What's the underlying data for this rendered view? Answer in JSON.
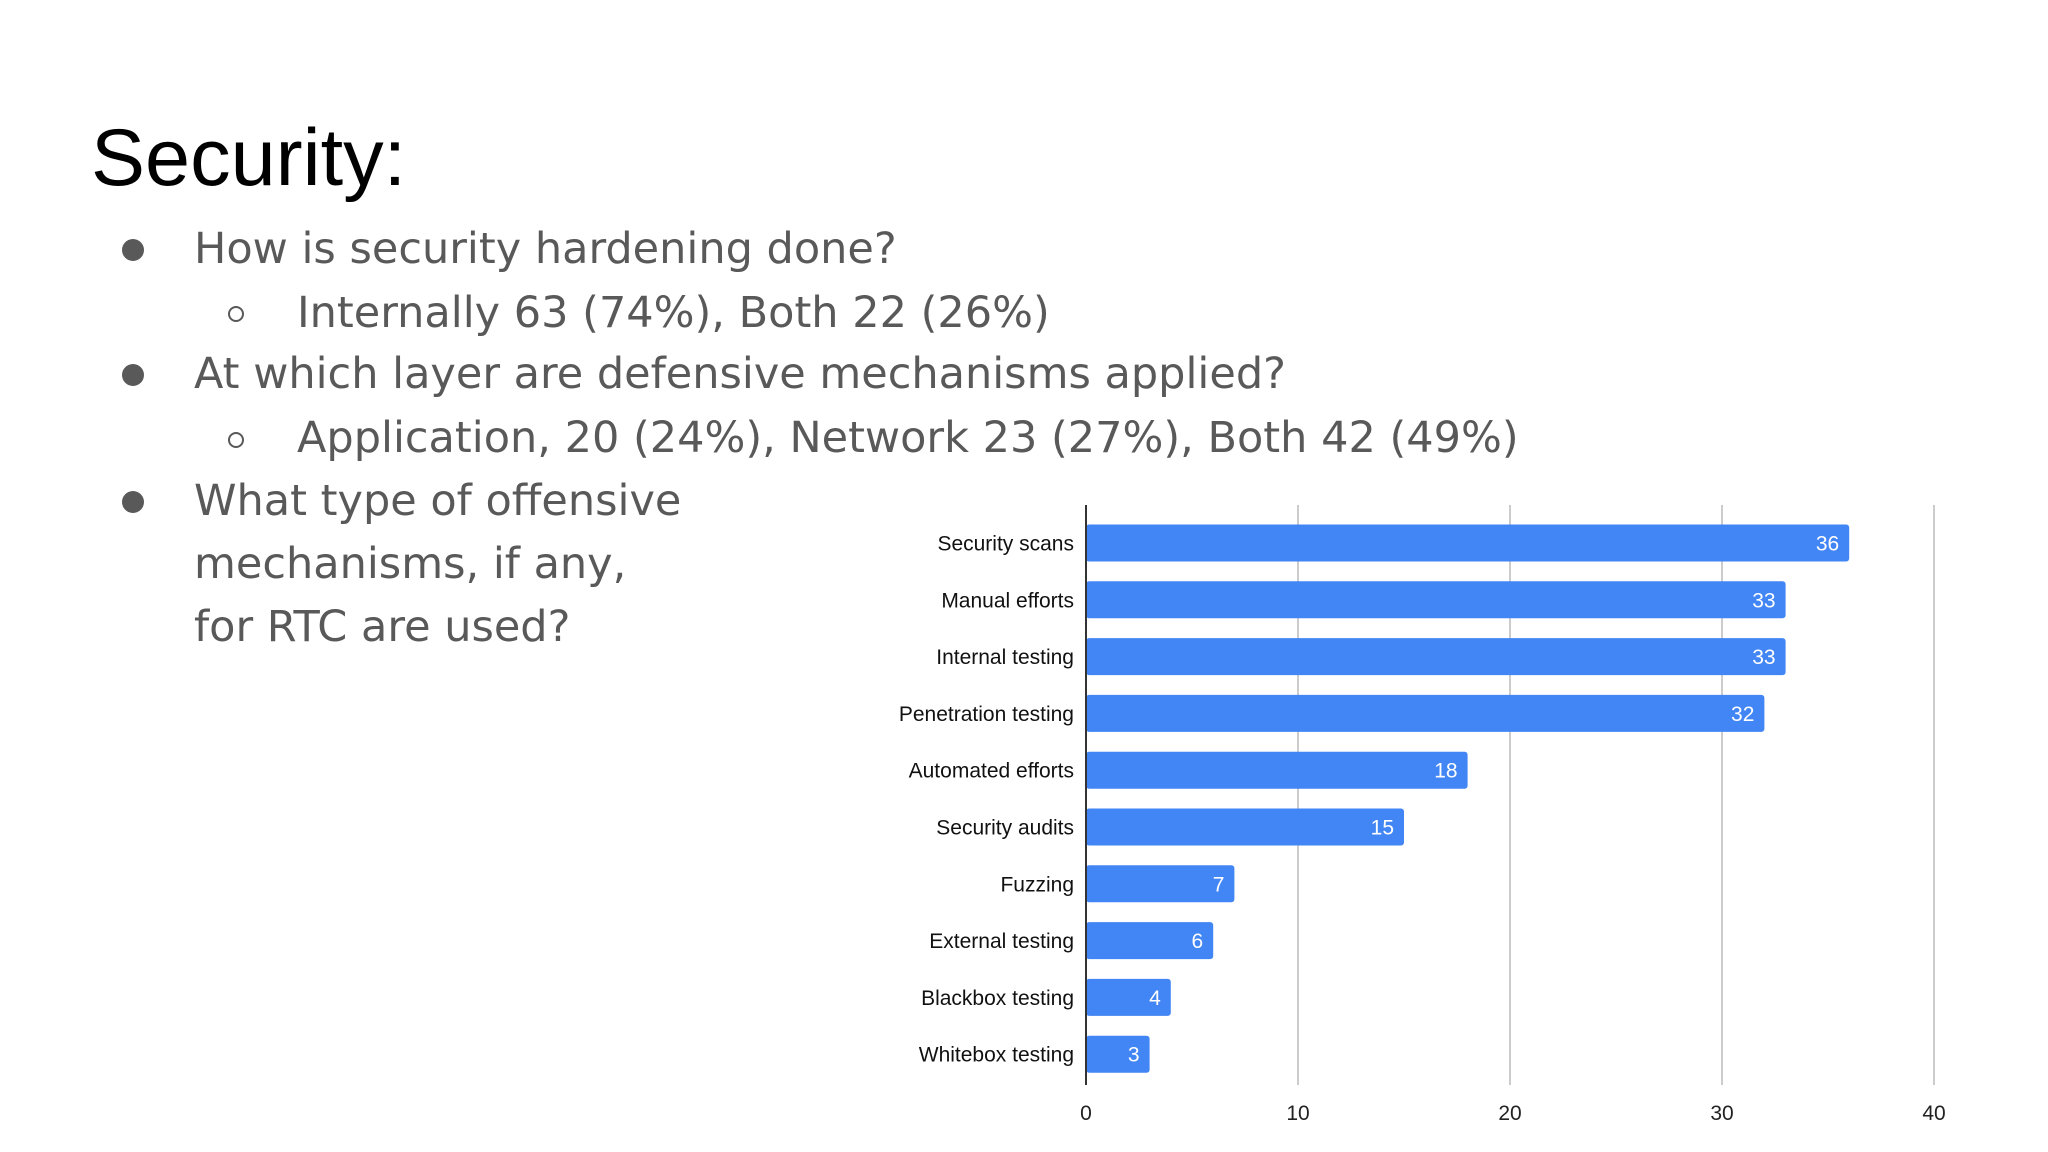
{
  "slide": {
    "title": "Security:",
    "bullets": [
      {
        "text": "How is security hardening done?",
        "sub": [
          "Internally 63 (74%), Both 22 (26%)"
        ]
      },
      {
        "text": "At which layer are defensive mechanisms applied?",
        "sub": [
          "Application, 20 (24%), Network 23 (27%), Both 42 (49%)"
        ]
      },
      {
        "text_lines": [
          "What type of offensive",
          "mechanisms, if any,",
          "for RTC are used?"
        ],
        "sub": []
      }
    ]
  },
  "colors": {
    "bar": "#4285f4",
    "bar_label": "#ffffff",
    "bullet_text": "#595959",
    "grid": "#cccccc",
    "axis": "#333333"
  },
  "chart_data": {
    "type": "bar",
    "orientation": "horizontal",
    "categories": [
      "Security scans",
      "Manual efforts",
      "Internal testing",
      "Penetration testing",
      "Automated efforts",
      "Security audits",
      "Fuzzing",
      "External testing",
      "Blackbox testing",
      "Whitebox testing"
    ],
    "values": [
      36,
      33,
      33,
      32,
      18,
      15,
      7,
      6,
      4,
      3
    ],
    "xlim": [
      0,
      40
    ],
    "xticks": [
      0,
      10,
      20,
      30,
      40
    ],
    "data_labels": true,
    "grid": true,
    "legend": "none",
    "title": "",
    "xlabel": "",
    "ylabel": ""
  }
}
